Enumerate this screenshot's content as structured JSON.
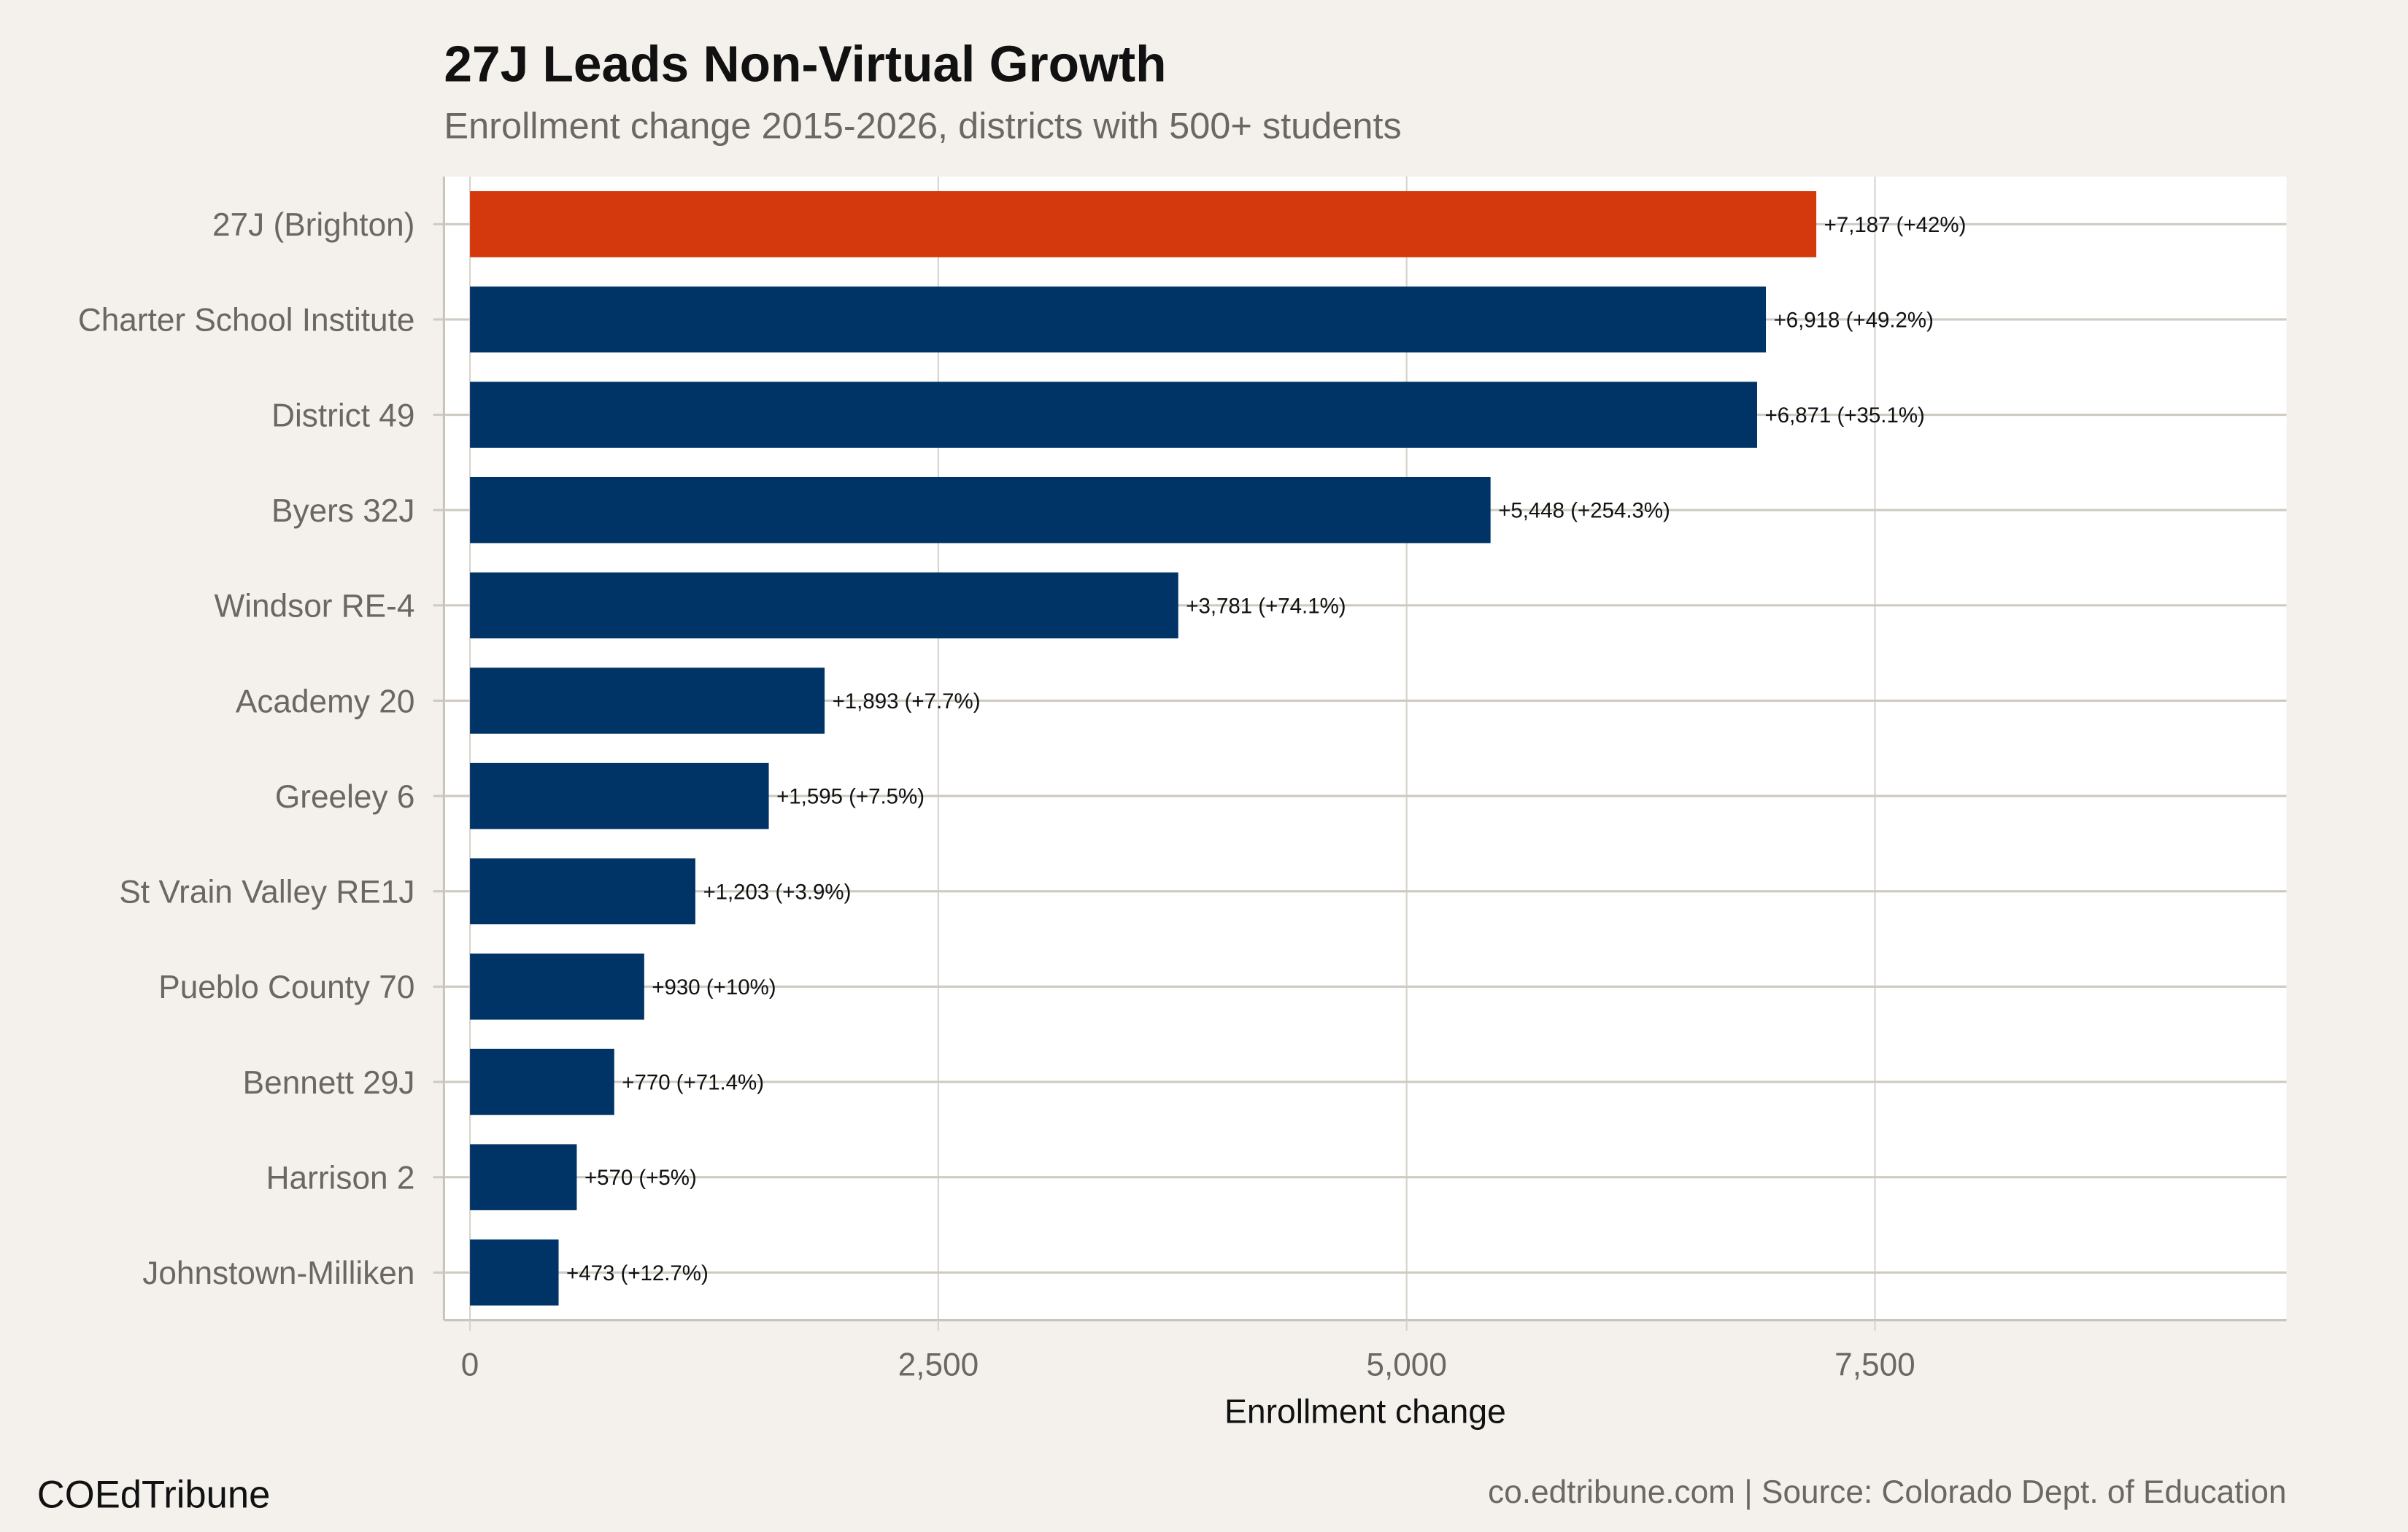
{
  "chart_data": {
    "type": "bar",
    "orientation": "horizontal",
    "title": "27J Leads Non-Virtual Growth",
    "subtitle": "Enrollment change 2015-2026, districts with 500+ students",
    "xlabel": "Enrollment change",
    "ylabel": "",
    "xlim": [
      -139,
      9697
    ],
    "xticks": [
      0,
      2500,
      5000,
      7500
    ],
    "xtick_labels": [
      "0",
      "2,500",
      "5,000",
      "7,500"
    ],
    "grid": true,
    "categories": [
      "27J (Brighton)",
      "Charter School Institute",
      "District 49",
      "Byers 32J",
      "Windsor RE-4",
      "Academy 20",
      "Greeley 6",
      "St Vrain Valley RE1J",
      "Pueblo County 70",
      "Bennett 29J",
      "Harrison 2",
      "Johnstown-Milliken"
    ],
    "values": [
      7187,
      6918,
      6871,
      5448,
      3781,
      1893,
      1595,
      1203,
      930,
      770,
      570,
      473
    ],
    "data_labels": [
      "+7,187 (+42%)",
      "+6,918 (+49.2%)",
      "+6,871 (+35.1%)",
      "+5,448 (+254.3%)",
      "+3,781 (+74.1%)",
      "+1,893 (+7.7%)",
      "+1,595 (+7.5%)",
      "+1,203 (+3.9%)",
      "+930 (+10%)",
      "+770 (+71.4%)",
      "+570 (+5%)",
      "+473 (+12.7%)"
    ],
    "highlight": "27J (Brighton)",
    "colors": {
      "highlight": "#d4380d",
      "default": "#003366",
      "background": "#f4f1ec",
      "panel": "#ffffff",
      "grid": "#cfcbc2"
    }
  },
  "footer": {
    "brand": "COEdTribune",
    "source": "co.edtribune.com | Source: Colorado Dept. of Education"
  }
}
